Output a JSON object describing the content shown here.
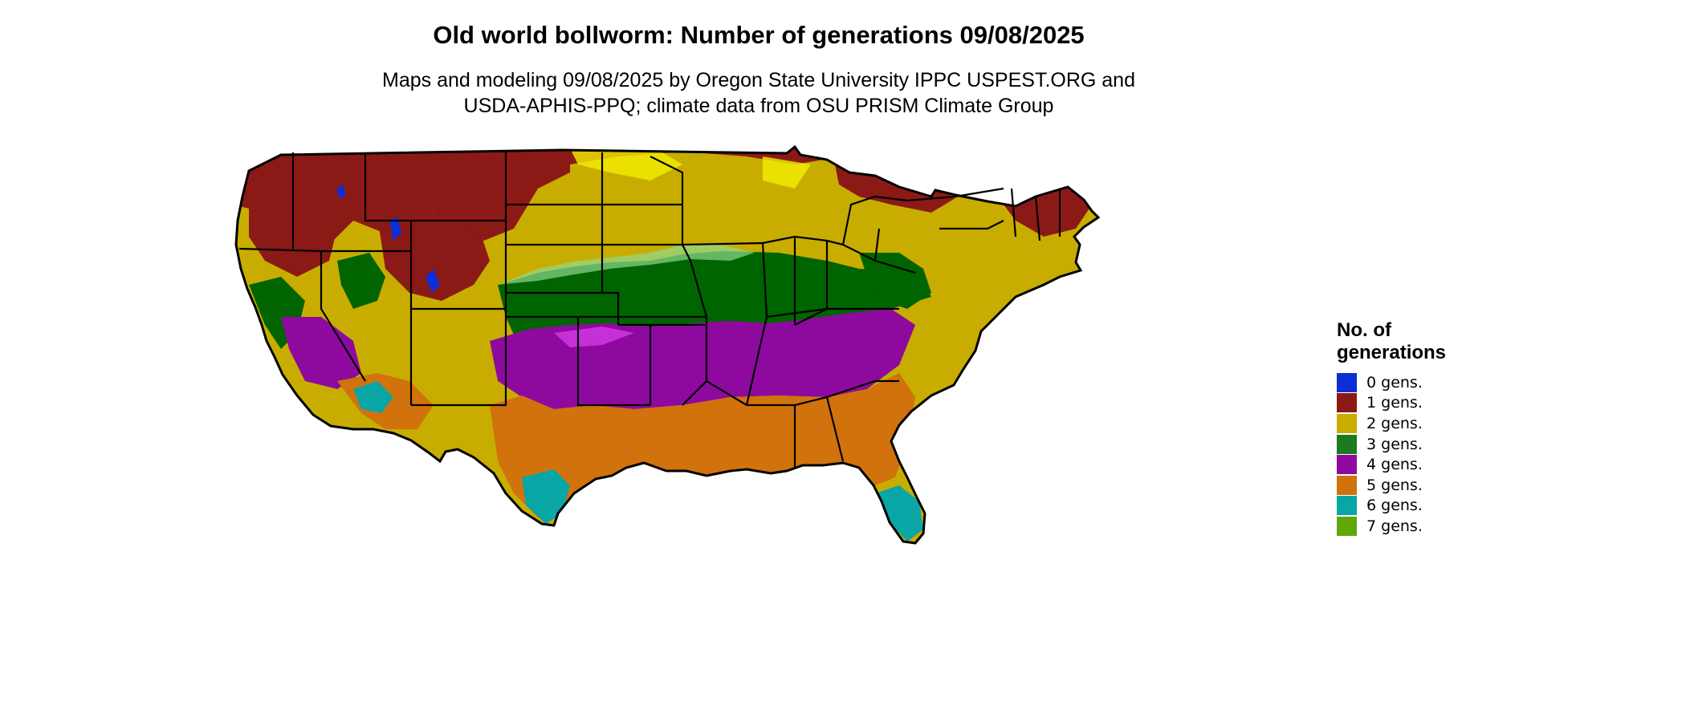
{
  "title": "Old world bollworm: Number of generations 09/08/2025",
  "subtitle_line1": "Maps and modeling 09/08/2025 by Oregon State University IPPC USPEST.ORG and",
  "subtitle_line2": "USDA-APHIS-PPQ; climate data from OSU PRISM Climate Group",
  "legend": {
    "title_line1": "No. of",
    "title_line2": "generations",
    "items": [
      {
        "label": "0 gens.",
        "color": "#0a2fd6"
      },
      {
        "label": "1 gens.",
        "color": "#8b1a16"
      },
      {
        "label": "2 gens.",
        "color": "#c8ad00"
      },
      {
        "label": "3 gens.",
        "color": "#1e7a1e"
      },
      {
        "label": "4 gens.",
        "color": "#8e0a9e"
      },
      {
        "label": "5 gens.",
        "color": "#d2720c"
      },
      {
        "label": "6 gens.",
        "color": "#0aa5a5"
      },
      {
        "label": "7 gens.",
        "color": "#5ea80c"
      }
    ]
  },
  "map_colors": {
    "gen0": "#0a2fd6",
    "gen1": "#8b1a16",
    "gen2": "#c8ad00",
    "gen2_bright": "#f2ee00",
    "gen3": "#006400",
    "gen3_light": "#8fd98f",
    "gen4": "#8e0a9e",
    "gen4_light": "#e040f0",
    "gen5": "#d2720c",
    "gen5_light": "#f09a4a",
    "gen6": "#0aa5a5",
    "gen6_light": "#00e6e6",
    "gen7": "#5ea80c",
    "border": "#000000"
  }
}
